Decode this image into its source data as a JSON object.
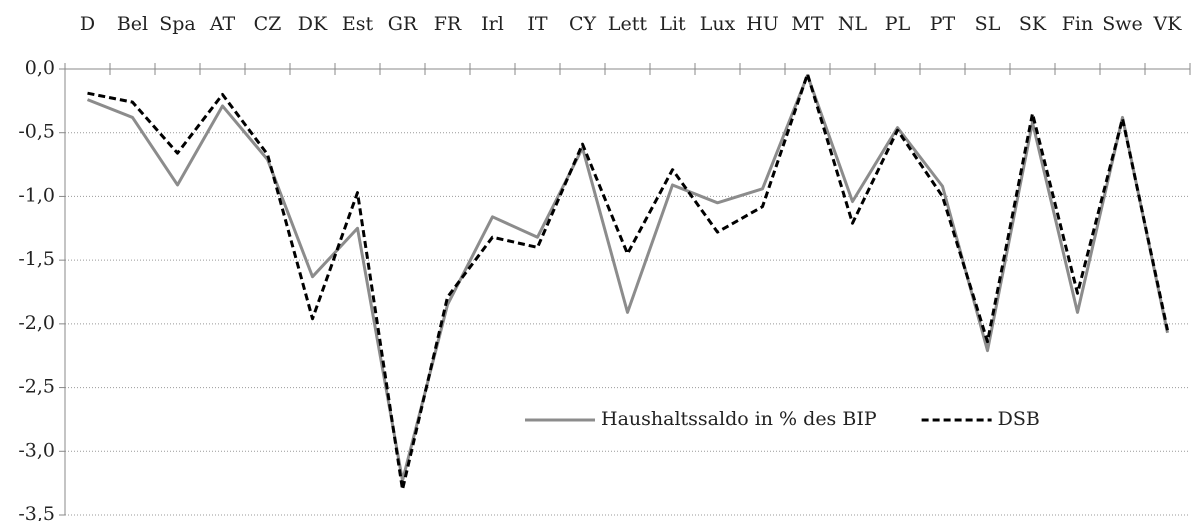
{
  "chart_data": {
    "type": "line",
    "categories": [
      "D",
      "Bel",
      "Spa",
      "AT",
      "CZ",
      "DK",
      "Est",
      "GR",
      "FR",
      "Irl",
      "IT",
      "CY",
      "Lett",
      "Lit",
      "Lux",
      "HU",
      "MT",
      "NL",
      "PL",
      "PT",
      "SL",
      "SK",
      "Fin",
      "Swe",
      "VK"
    ],
    "series": [
      {
        "name": "Haushaltssaldo in % des BIP",
        "color": "#8c8c8c",
        "dash": "solid",
        "values": [
          -0.24,
          -0.38,
          -0.91,
          -0.29,
          -0.71,
          -1.63,
          -1.25,
          -3.23,
          -1.85,
          -1.16,
          -1.32,
          -0.62,
          -1.91,
          -0.91,
          -1.05,
          -0.94,
          -0.05,
          -1.04,
          -0.46,
          -0.92,
          -2.21,
          -0.42,
          -1.91,
          -0.38,
          -2.07
        ]
      },
      {
        "name": "DSB",
        "color": "#000000",
        "dash": "dashed",
        "values": [
          -0.19,
          -0.26,
          -0.66,
          -0.2,
          -0.67,
          -1.96,
          -0.97,
          -3.3,
          -1.79,
          -1.32,
          -1.4,
          -0.59,
          -1.45,
          -0.79,
          -1.28,
          -1.08,
          -0.04,
          -1.21,
          -0.48,
          -1.0,
          -2.14,
          -0.35,
          -1.76,
          -0.39,
          -2.05
        ]
      }
    ],
    "ylim": [
      -3.5,
      0
    ],
    "yticks": [
      {
        "value": 0,
        "label": "0,0"
      },
      {
        "value": -0.5,
        "label": "-0,5"
      },
      {
        "value": -1,
        "label": "-1,0"
      },
      {
        "value": -1.5,
        "label": "-1,5"
      },
      {
        "value": -2,
        "label": "-2,0"
      },
      {
        "value": -2.5,
        "label": "-2,5"
      },
      {
        "value": -3,
        "label": "-3,0"
      },
      {
        "value": -3.5,
        "label": "-3,5"
      }
    ],
    "grid": true,
    "legend": "lower center"
  }
}
